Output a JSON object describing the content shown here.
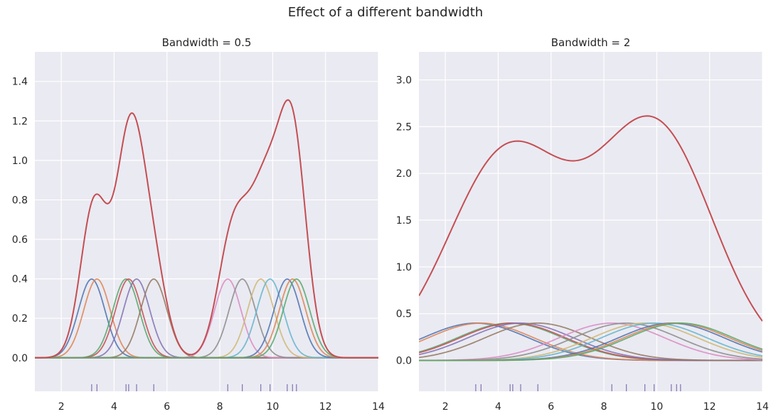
{
  "suptitle": "Effect of a different bandwidth",
  "chart_data": [
    {
      "type": "line",
      "title": "Bandwidth = 0.5",
      "xlabel": "",
      "ylabel": "",
      "bandwidth": 0.5,
      "xlim": [
        1,
        14
      ],
      "ylim": [
        -0.17,
        1.55
      ],
      "xticks": [
        2,
        4,
        6,
        8,
        10,
        12,
        14
      ],
      "yticks": [
        0.0,
        0.2,
        0.4,
        0.6,
        0.8,
        1.0,
        1.2,
        1.4
      ],
      "ytick_format": 1,
      "grid": true,
      "sample_points": [
        3.15,
        3.35,
        4.45,
        4.55,
        4.85,
        5.5,
        8.3,
        8.85,
        9.55,
        9.9,
        10.55,
        10.75,
        10.9
      ],
      "component_peak": 0.3989,
      "series": [
        {
          "kind": "sum",
          "label": "",
          "color": "#c44e52"
        }
      ]
    },
    {
      "type": "line",
      "title": "Bandwidth = 2",
      "xlabel": "",
      "ylabel": "",
      "bandwidth": 2,
      "xlim": [
        1,
        14
      ],
      "ylim": [
        -0.33,
        3.3
      ],
      "xticks": [
        2,
        4,
        6,
        8,
        10,
        12,
        14
      ],
      "yticks": [
        0.0,
        0.5,
        1.0,
        1.5,
        2.0,
        2.5,
        3.0
      ],
      "ytick_format": 1,
      "grid": true,
      "sample_points": [
        3.15,
        3.35,
        4.45,
        4.55,
        4.85,
        5.5,
        8.3,
        8.85,
        9.55,
        9.9,
        10.55,
        10.75,
        10.9
      ],
      "component_peak": 0.3989,
      "series": [
        {
          "kind": "sum",
          "label": "",
          "color": "#c44e52"
        }
      ]
    }
  ],
  "colors": {
    "components": [
      "#4c72b0",
      "#dd8452",
      "#55a868",
      "#c44e52",
      "#8172b3",
      "#937860",
      "#da8bc3",
      "#8c8c8c",
      "#ccb974",
      "#64b5cd"
    ],
    "rug": "#8172b3",
    "axes_bg": "#eaeaf2",
    "grid": "#ffffff"
  }
}
